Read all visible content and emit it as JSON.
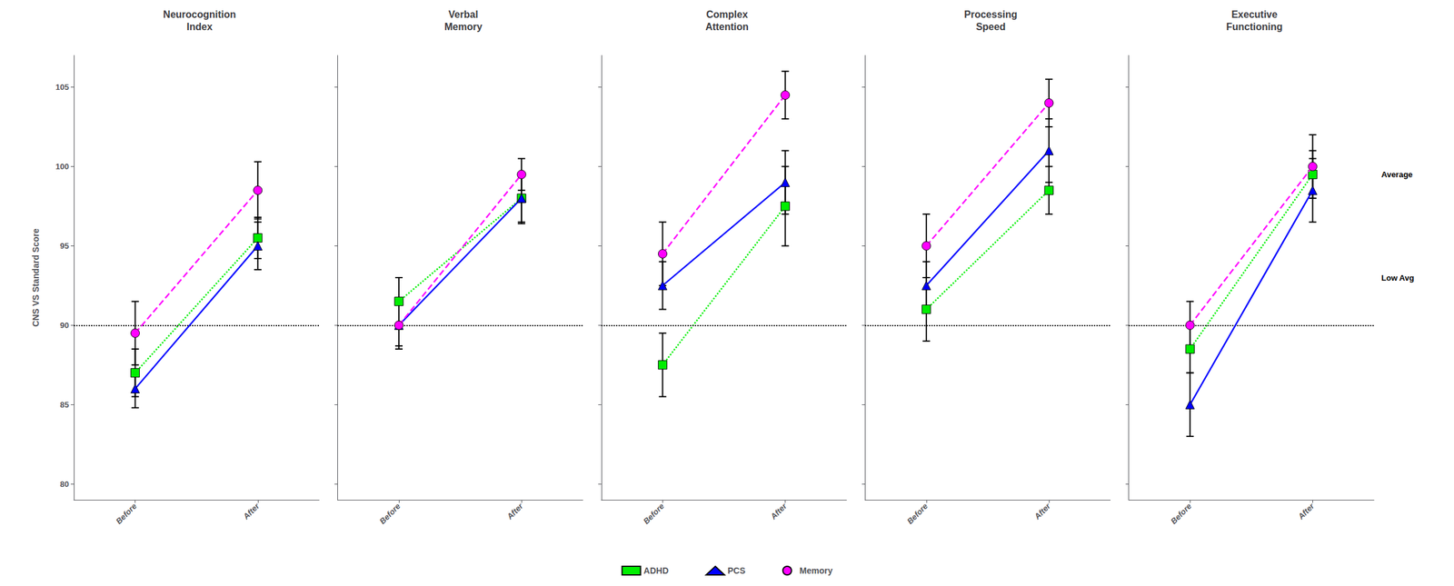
{
  "chart_data": [
    {
      "type": "line",
      "title": "Neurocognition\nIndex",
      "categories": [
        "Before",
        "After"
      ],
      "series": [
        {
          "name": "ADHD",
          "color": "#00ee00",
          "marker": "square",
          "line_style": "dotted",
          "values": [
            87.0,
            95.5
          ],
          "errors": [
            1.5,
            1.3
          ]
        },
        {
          "name": "PCS",
          "color": "#0000ff",
          "marker": "triangle",
          "line_style": "solid",
          "values": [
            86.0,
            95.0
          ],
          "errors": [
            1.2,
            1.5
          ]
        },
        {
          "name": "Memory",
          "color": "#ff00ff",
          "marker": "circle",
          "line_style": "dashed",
          "values": [
            89.5,
            98.5
          ],
          "errors": [
            2.0,
            1.8
          ]
        }
      ],
      "ylabel": "CNS VS Standard Score",
      "ylim": [
        79,
        107
      ],
      "yticks": [
        80,
        85,
        90,
        95,
        100,
        105
      ],
      "hline": 90,
      "grid": false,
      "legend": "bottom"
    },
    {
      "type": "line",
      "title": "Verbal\nMemory",
      "categories": [
        "Before",
        "After"
      ],
      "series": [
        {
          "name": "ADHD",
          "color": "#00ee00",
          "marker": "square",
          "line_style": "dotted",
          "values": [
            91.5,
            98.0
          ],
          "errors": [
            1.5,
            1.5
          ]
        },
        {
          "name": "PCS",
          "color": "#0000ff",
          "marker": "triangle",
          "line_style": "solid",
          "values": [
            90.0,
            98.0
          ],
          "errors": [
            1.3,
            1.6
          ]
        },
        {
          "name": "Memory",
          "color": "#ff00ff",
          "marker": "circle",
          "line_style": "dashed",
          "values": [
            90.0,
            99.5
          ],
          "errors": [
            1.5,
            1.0
          ]
        }
      ],
      "ylim": [
        79,
        107
      ],
      "yticks": [
        80,
        85,
        90,
        95,
        100,
        105
      ],
      "hline": 90,
      "grid": false,
      "tick_labels": "x"
    },
    {
      "type": "line",
      "title": "Complex\nAttention",
      "categories": [
        "Before",
        "After"
      ],
      "series": [
        {
          "name": "ADHD",
          "color": "#00ee00",
          "marker": "square",
          "line_style": "dotted",
          "values": [
            87.5,
            97.5
          ],
          "errors": [
            2.0,
            2.5
          ]
        },
        {
          "name": "PCS",
          "color": "#0000ff",
          "marker": "triangle",
          "line_style": "solid",
          "values": [
            92.5,
            99.0
          ],
          "errors": [
            1.5,
            2.0
          ]
        },
        {
          "name": "Memory",
          "color": "#ff00ff",
          "marker": "circle",
          "line_style": "dashed",
          "values": [
            94.5,
            104.5
          ],
          "errors": [
            2.0,
            1.5
          ]
        }
      ],
      "ylim": [
        79,
        107
      ],
      "yticks": [
        80,
        85,
        90,
        95,
        100,
        105
      ],
      "hline": 90,
      "grid": false,
      "tick_labels": "x"
    },
    {
      "type": "line",
      "title": "Processing\nSpeed",
      "categories": [
        "Before",
        "After"
      ],
      "series": [
        {
          "name": "ADHD",
          "color": "#00ee00",
          "marker": "square",
          "line_style": "dotted",
          "values": [
            91.0,
            98.5
          ],
          "errors": [
            2.0,
            1.5
          ]
        },
        {
          "name": "PCS",
          "color": "#0000ff",
          "marker": "triangle",
          "line_style": "solid",
          "values": [
            92.5,
            101.0
          ],
          "errors": [
            1.5,
            2.0
          ]
        },
        {
          "name": "Memory",
          "color": "#ff00ff",
          "marker": "circle",
          "line_style": "dashed",
          "values": [
            95.0,
            104.0
          ],
          "errors": [
            2.0,
            1.5
          ]
        }
      ],
      "ylim": [
        79,
        107
      ],
      "yticks": [
        80,
        85,
        90,
        95,
        100,
        105
      ],
      "hline": 90,
      "grid": false,
      "tick_labels": "x"
    },
    {
      "type": "line",
      "title": "Executive\nFunctioning",
      "categories": [
        "Before",
        "After"
      ],
      "series": [
        {
          "name": "ADHD",
          "color": "#00ee00",
          "marker": "square",
          "line_style": "dotted",
          "values": [
            88.5,
            99.5
          ],
          "errors": [
            1.5,
            1.5
          ]
        },
        {
          "name": "PCS",
          "color": "#0000ff",
          "marker": "triangle",
          "line_style": "solid",
          "values": [
            85.0,
            98.5
          ],
          "errors": [
            2.0,
            2.0
          ]
        },
        {
          "name": "Memory",
          "color": "#ff00ff",
          "marker": "circle",
          "line_style": "dashed",
          "values": [
            90.0,
            100.0
          ],
          "errors": [
            1.5,
            2.0
          ]
        }
      ],
      "ylim": [
        79,
        107
      ],
      "yticks": [
        80,
        85,
        90,
        95,
        100,
        105
      ],
      "hline": 90,
      "grid": false,
      "tick_labels": "x",
      "annotations": [
        {
          "text": "Average",
          "y": 99.5
        },
        {
          "text": "Low Avg",
          "y": 93.0
        }
      ]
    }
  ]
}
